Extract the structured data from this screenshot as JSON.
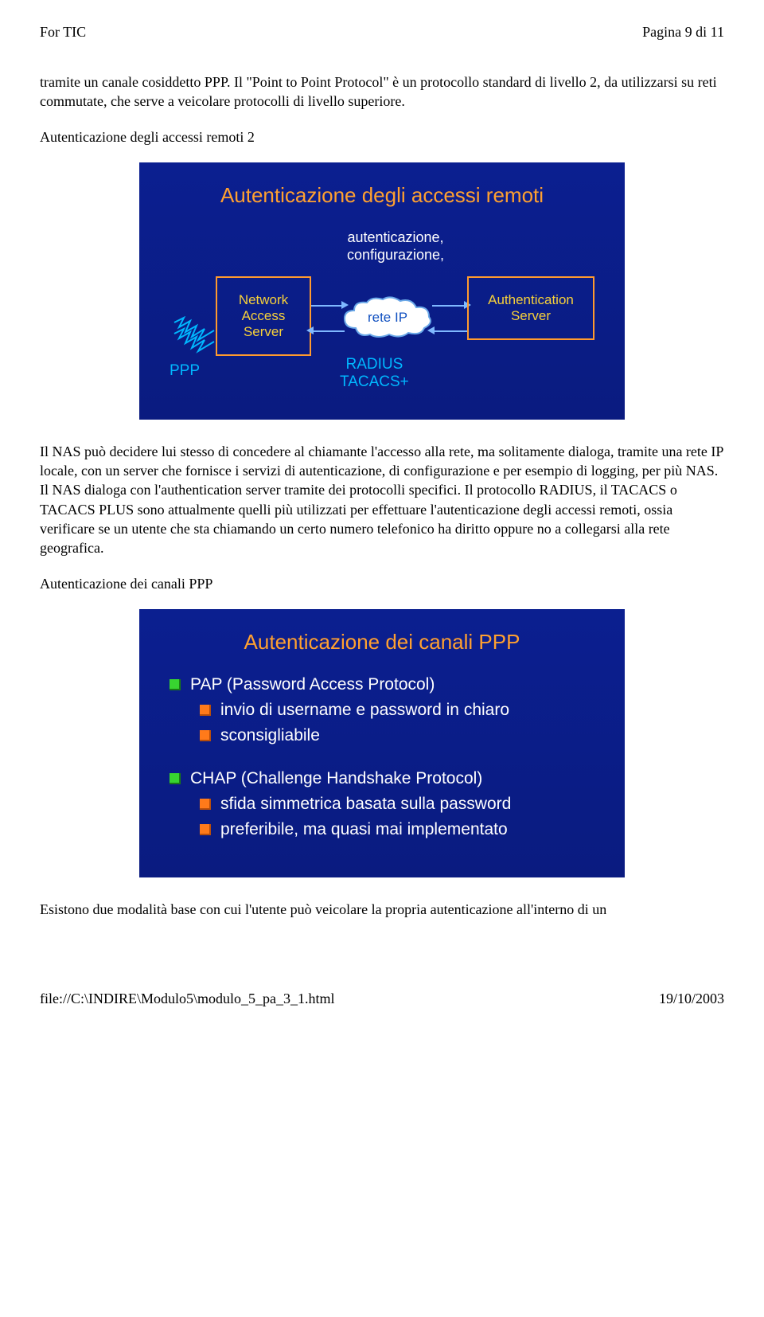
{
  "header": {
    "left": "For TIC",
    "right": "Pagina 9 di 11"
  },
  "paragraphs": {
    "p1": "tramite un canale cosiddetto PPP. Il \"Point to Point Protocol\" è un protocollo standard di livello 2, da utilizzarsi su reti commutate, che serve a veicolare protocolli di livello superiore.",
    "h1": "Autenticazione degli accessi remoti 2",
    "p2": "Il NAS può decidere lui stesso di concedere al chiamante l'accesso alla rete, ma solitamente dialoga, tramite una rete IP locale, con un server che fornisce i servizi di autenticazione, di configurazione e per esempio di logging, per più NAS. Il NAS dialoga con l'authentication server tramite dei protocolli specifici. Il protocollo RADIUS, il TACACS o TACACS PLUS sono attualmente quelli più utilizzati per effettuare l'autenticazione degli accessi remoti, ossia verificare se un utente che sta chiamando un certo numero telefonico ha diritto oppure no a collegarsi alla rete geografica.",
    "h2": "Autenticazione dei canali PPP",
    "p3": "Esistono due modalità base con cui l'utente può veicolare la propria autenticazione all'interno di un"
  },
  "slide1": {
    "title": "Autenticazione degli accessi remoti",
    "top_label_l1": "autenticazione,",
    "top_label_l2": "configurazione,",
    "nas": "Network Access Server",
    "cloud": "rete IP",
    "auth": "Authentication Server",
    "ppp": "PPP",
    "radius_l1": "RADIUS",
    "radius_l2": "TACACS+"
  },
  "slide2": {
    "title": "Autenticazione dei canali PPP",
    "items": [
      {
        "level": 1,
        "color": "green",
        "text": "PAP (Password Access Protocol)"
      },
      {
        "level": 2,
        "color": "orange",
        "text": "invio di username e password in chiaro"
      },
      {
        "level": 2,
        "color": "orange",
        "text": "sconsigliabile"
      },
      {
        "level": 1,
        "color": "green",
        "text": "CHAP (Challenge Handshake Protocol)"
      },
      {
        "level": 2,
        "color": "orange",
        "text": "sfida simmetrica basata sulla password"
      },
      {
        "level": 2,
        "color": "orange",
        "text": "preferibile, ma quasi mai implementato"
      }
    ]
  },
  "footer": {
    "left": "file://C:\\INDIRE\\Modulo5\\modulo_5_pa_3_1.html",
    "right": "19/10/2003"
  }
}
